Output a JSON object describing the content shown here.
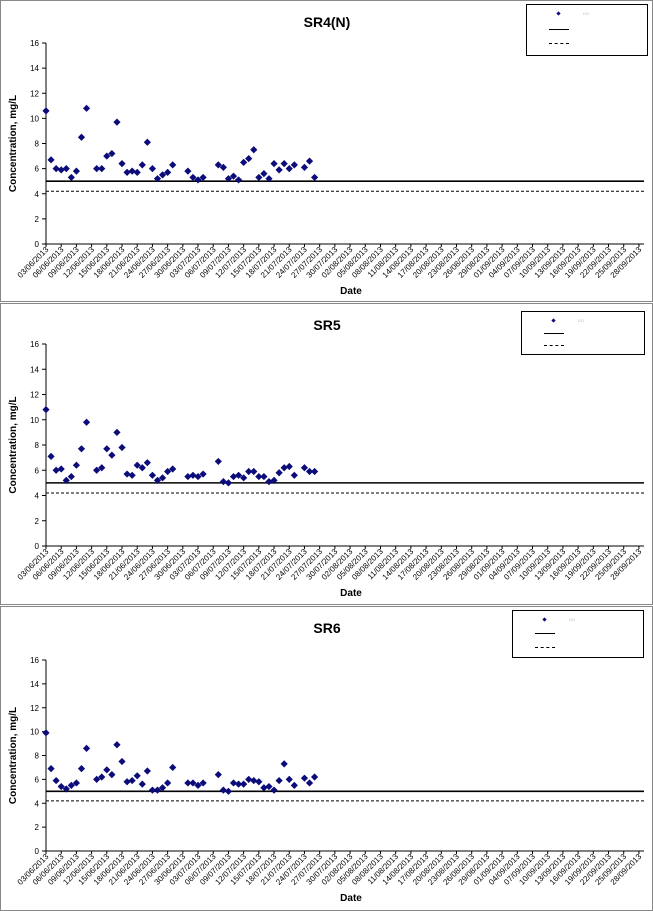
{
  "chart_data": [
    {
      "type": "scatter",
      "title": "SR4(N)",
      "xlabel": "Date",
      "ylabel": "Concentration, mg/L",
      "ylim": [
        0,
        16
      ],
      "yticks": [
        0,
        2,
        4,
        6,
        8,
        10,
        12,
        14,
        16
      ],
      "x_range": [
        "03/06/2013",
        "29/09/2013"
      ],
      "x_ticks": [
        "03/06/2013",
        "06/06/2013",
        "09/06/2013",
        "12/06/2013",
        "15/06/2013",
        "18/06/2013",
        "21/06/2013",
        "24/06/2013",
        "27/06/2013",
        "30/06/2013",
        "03/07/2013",
        "06/07/2013",
        "09/07/2013",
        "12/07/2013",
        "15/07/2013",
        "18/07/2013",
        "21/07/2013",
        "24/07/2013",
        "27/07/2013",
        "30/07/2013",
        "02/08/2013",
        "05/08/2013",
        "08/08/2013",
        "11/08/2013",
        "14/08/2013",
        "17/08/2013",
        "20/08/2013",
        "23/08/2013",
        "26/08/2013",
        "29/08/2013",
        "01/09/2013",
        "04/09/2013",
        "07/09/2013",
        "10/09/2013",
        "13/09/2013",
        "16/09/2013",
        "19/09/2013",
        "22/09/2013",
        "25/09/2013",
        "28/09/2013"
      ],
      "legend": {
        "position": "top-right",
        "entries": [
          "DO",
          "",
          ""
        ]
      },
      "lines": [
        {
          "style": "solid",
          "value": 5.0
        },
        {
          "style": "dashed",
          "value": 4.2
        }
      ],
      "grid": false,
      "series": [
        {
          "marker": "diamond",
          "color": "#0b0b7a",
          "points": [
            {
              "x": "03/06/2013",
              "y": 10.6
            },
            {
              "x": "04/06/2013",
              "y": 6.7
            },
            {
              "x": "05/06/2013",
              "y": 6.0
            },
            {
              "x": "06/06/2013",
              "y": 5.9
            },
            {
              "x": "07/06/2013",
              "y": 6.0
            },
            {
              "x": "08/06/2013",
              "y": 5.3
            },
            {
              "x": "09/06/2013",
              "y": 5.8
            },
            {
              "x": "10/06/2013",
              "y": 8.5
            },
            {
              "x": "11/06/2013",
              "y": 10.8
            },
            {
              "x": "13/06/2013",
              "y": 6.0
            },
            {
              "x": "14/06/2013",
              "y": 6.0
            },
            {
              "x": "15/06/2013",
              "y": 7.0
            },
            {
              "x": "16/06/2013",
              "y": 7.2
            },
            {
              "x": "17/06/2013",
              "y": 9.7
            },
            {
              "x": "18/06/2013",
              "y": 6.4
            },
            {
              "x": "19/06/2013",
              "y": 5.7
            },
            {
              "x": "20/06/2013",
              "y": 5.8
            },
            {
              "x": "21/06/2013",
              "y": 5.7
            },
            {
              "x": "22/06/2013",
              "y": 6.3
            },
            {
              "x": "23/06/2013",
              "y": 8.1
            },
            {
              "x": "24/06/2013",
              "y": 6.0
            },
            {
              "x": "25/06/2013",
              "y": 5.2
            },
            {
              "x": "26/06/2013",
              "y": 5.5
            },
            {
              "x": "27/06/2013",
              "y": 5.7
            },
            {
              "x": "28/06/2013",
              "y": 6.3
            },
            {
              "x": "01/07/2013",
              "y": 5.8
            },
            {
              "x": "02/07/2013",
              "y": 5.3
            },
            {
              "x": "03/07/2013",
              "y": 5.1
            },
            {
              "x": "04/07/2013",
              "y": 5.3
            },
            {
              "x": "07/07/2013",
              "y": 6.3
            },
            {
              "x": "08/07/2013",
              "y": 6.1
            },
            {
              "x": "09/07/2013",
              "y": 5.2
            },
            {
              "x": "10/07/2013",
              "y": 5.4
            },
            {
              "x": "11/07/2013",
              "y": 5.1
            },
            {
              "x": "12/07/2013",
              "y": 6.5
            },
            {
              "x": "13/07/2013",
              "y": 6.8
            },
            {
              "x": "14/07/2013",
              "y": 7.5
            },
            {
              "x": "15/07/2013",
              "y": 5.3
            },
            {
              "x": "16/07/2013",
              "y": 5.6
            },
            {
              "x": "17/07/2013",
              "y": 5.2
            },
            {
              "x": "18/07/2013",
              "y": 6.4
            },
            {
              "x": "19/07/2013",
              "y": 5.9
            },
            {
              "x": "20/07/2013",
              "y": 6.4
            },
            {
              "x": "21/07/2013",
              "y": 6.0
            },
            {
              "x": "22/07/2013",
              "y": 6.3
            },
            {
              "x": "24/07/2013",
              "y": 6.1
            },
            {
              "x": "25/07/2013",
              "y": 6.6
            },
            {
              "x": "26/07/2013",
              "y": 5.3
            }
          ]
        }
      ]
    },
    {
      "type": "scatter",
      "title": "SR5",
      "xlabel": "Date",
      "ylabel": "Concentration, mg/L",
      "ylim": [
        0,
        16
      ],
      "yticks": [
        0,
        2,
        4,
        6,
        8,
        10,
        12,
        14,
        16
      ],
      "x_range": [
        "03/06/2013",
        "29/09/2013"
      ],
      "x_ticks": [
        "03/06/2013",
        "06/06/2013",
        "09/06/2013",
        "12/06/2013",
        "15/06/2013",
        "18/06/2013",
        "21/06/2013",
        "24/06/2013",
        "27/06/2013",
        "30/06/2013",
        "03/07/2013",
        "06/07/2013",
        "09/07/2013",
        "12/07/2013",
        "15/07/2013",
        "18/07/2013",
        "21/07/2013",
        "24/07/2013",
        "27/07/2013",
        "30/07/2013",
        "02/08/2013",
        "05/08/2013",
        "08/08/2013",
        "11/08/2013",
        "14/08/2013",
        "17/08/2013",
        "20/08/2013",
        "23/08/2013",
        "26/08/2013",
        "29/08/2013",
        "01/09/2013",
        "04/09/2013",
        "07/09/2013",
        "10/09/2013",
        "13/09/2013",
        "16/09/2013",
        "19/09/2013",
        "22/09/2013",
        "25/09/2013",
        "28/09/2013"
      ],
      "legend": {
        "position": "top-right",
        "entries": [
          "DO",
          "",
          ""
        ]
      },
      "lines": [
        {
          "style": "solid",
          "value": 5.0
        },
        {
          "style": "dashed",
          "value": 4.2
        }
      ],
      "grid": false,
      "series": [
        {
          "marker": "diamond",
          "color": "#0b0b7a",
          "points": [
            {
              "x": "03/06/2013",
              "y": 10.8
            },
            {
              "x": "04/06/2013",
              "y": 7.1
            },
            {
              "x": "05/06/2013",
              "y": 6.0
            },
            {
              "x": "06/06/2013",
              "y": 6.1
            },
            {
              "x": "07/06/2013",
              "y": 5.2
            },
            {
              "x": "08/06/2013",
              "y": 5.5
            },
            {
              "x": "09/06/2013",
              "y": 6.4
            },
            {
              "x": "10/06/2013",
              "y": 7.7
            },
            {
              "x": "11/06/2013",
              "y": 9.8
            },
            {
              "x": "13/06/2013",
              "y": 6.0
            },
            {
              "x": "14/06/2013",
              "y": 6.2
            },
            {
              "x": "15/06/2013",
              "y": 7.7
            },
            {
              "x": "16/06/2013",
              "y": 7.2
            },
            {
              "x": "17/06/2013",
              "y": 9.0
            },
            {
              "x": "18/06/2013",
              "y": 7.8
            },
            {
              "x": "19/06/2013",
              "y": 5.7
            },
            {
              "x": "20/06/2013",
              "y": 5.6
            },
            {
              "x": "21/06/2013",
              "y": 6.4
            },
            {
              "x": "22/06/2013",
              "y": 6.2
            },
            {
              "x": "23/06/2013",
              "y": 6.6
            },
            {
              "x": "24/06/2013",
              "y": 5.6
            },
            {
              "x": "25/06/2013",
              "y": 5.2
            },
            {
              "x": "26/06/2013",
              "y": 5.4
            },
            {
              "x": "27/06/2013",
              "y": 5.9
            },
            {
              "x": "28/06/2013",
              "y": 6.1
            },
            {
              "x": "01/07/2013",
              "y": 5.5
            },
            {
              "x": "02/07/2013",
              "y": 5.6
            },
            {
              "x": "03/07/2013",
              "y": 5.5
            },
            {
              "x": "04/07/2013",
              "y": 5.7
            },
            {
              "x": "07/07/2013",
              "y": 6.7
            },
            {
              "x": "08/07/2013",
              "y": 5.1
            },
            {
              "x": "09/07/2013",
              "y": 5.0
            },
            {
              "x": "10/07/2013",
              "y": 5.5
            },
            {
              "x": "11/07/2013",
              "y": 5.6
            },
            {
              "x": "12/07/2013",
              "y": 5.4
            },
            {
              "x": "13/07/2013",
              "y": 5.9
            },
            {
              "x": "14/07/2013",
              "y": 5.9
            },
            {
              "x": "15/07/2013",
              "y": 5.5
            },
            {
              "x": "16/07/2013",
              "y": 5.5
            },
            {
              "x": "17/07/2013",
              "y": 5.1
            },
            {
              "x": "18/07/2013",
              "y": 5.2
            },
            {
              "x": "19/07/2013",
              "y": 5.8
            },
            {
              "x": "20/07/2013",
              "y": 6.2
            },
            {
              "x": "21/07/2013",
              "y": 6.3
            },
            {
              "x": "22/07/2013",
              "y": 5.6
            },
            {
              "x": "24/07/2013",
              "y": 6.2
            },
            {
              "x": "25/07/2013",
              "y": 5.9
            },
            {
              "x": "26/07/2013",
              "y": 5.9
            }
          ]
        }
      ]
    },
    {
      "type": "scatter",
      "title": "SR6",
      "xlabel": "Date",
      "ylabel": "Concentration, mg/L",
      "ylim": [
        0,
        16
      ],
      "yticks": [
        0,
        2,
        4,
        6,
        8,
        10,
        12,
        14,
        16
      ],
      "x_range": [
        "03/06/2013",
        "29/09/2013"
      ],
      "x_ticks": [
        "03/06/2013",
        "06/06/2013",
        "09/06/2013",
        "12/06/2013",
        "15/06/2013",
        "18/06/2013",
        "21/06/2013",
        "24/06/2013",
        "27/06/2013",
        "30/06/2013",
        "03/07/2013",
        "06/07/2013",
        "09/07/2013",
        "12/07/2013",
        "15/07/2013",
        "18/07/2013",
        "21/07/2013",
        "24/07/2013",
        "27/07/2013",
        "30/07/2013",
        "02/08/2013",
        "05/08/2013",
        "08/08/2013",
        "11/08/2013",
        "14/08/2013",
        "17/08/2013",
        "20/08/2013",
        "23/08/2013",
        "26/08/2013",
        "29/08/2013",
        "01/09/2013",
        "04/09/2013",
        "07/09/2013",
        "10/09/2013",
        "13/09/2013",
        "16/09/2013",
        "19/09/2013",
        "22/09/2013",
        "25/09/2013",
        "28/09/2013"
      ],
      "legend": {
        "position": "top-right",
        "entries": [
          "DO",
          "",
          ""
        ]
      },
      "lines": [
        {
          "style": "solid",
          "value": 5.0
        },
        {
          "style": "dashed",
          "value": 4.2
        }
      ],
      "grid": false,
      "series": [
        {
          "marker": "diamond",
          "color": "#0b0b7a",
          "points": [
            {
              "x": "03/06/2013",
              "y": 9.9
            },
            {
              "x": "04/06/2013",
              "y": 6.9
            },
            {
              "x": "05/06/2013",
              "y": 5.9
            },
            {
              "x": "06/06/2013",
              "y": 5.4
            },
            {
              "x": "07/06/2013",
              "y": 5.2
            },
            {
              "x": "08/06/2013",
              "y": 5.5
            },
            {
              "x": "09/06/2013",
              "y": 5.7
            },
            {
              "x": "10/06/2013",
              "y": 6.9
            },
            {
              "x": "11/06/2013",
              "y": 8.6
            },
            {
              "x": "13/06/2013",
              "y": 6.0
            },
            {
              "x": "14/06/2013",
              "y": 6.2
            },
            {
              "x": "15/06/2013",
              "y": 6.8
            },
            {
              "x": "16/06/2013",
              "y": 6.4
            },
            {
              "x": "17/06/2013",
              "y": 8.9
            },
            {
              "x": "18/06/2013",
              "y": 7.5
            },
            {
              "x": "19/06/2013",
              "y": 5.8
            },
            {
              "x": "20/06/2013",
              "y": 5.9
            },
            {
              "x": "21/06/2013",
              "y": 6.3
            },
            {
              "x": "22/06/2013",
              "y": 5.6
            },
            {
              "x": "23/06/2013",
              "y": 6.7
            },
            {
              "x": "24/06/2013",
              "y": 5.1
            },
            {
              "x": "25/06/2013",
              "y": 5.1
            },
            {
              "x": "26/06/2013",
              "y": 5.3
            },
            {
              "x": "27/06/2013",
              "y": 5.7
            },
            {
              "x": "28/06/2013",
              "y": 7.0
            },
            {
              "x": "01/07/2013",
              "y": 5.7
            },
            {
              "x": "02/07/2013",
              "y": 5.7
            },
            {
              "x": "03/07/2013",
              "y": 5.5
            },
            {
              "x": "04/07/2013",
              "y": 5.7
            },
            {
              "x": "07/07/2013",
              "y": 6.4
            },
            {
              "x": "08/07/2013",
              "y": 5.1
            },
            {
              "x": "09/07/2013",
              "y": 5.0
            },
            {
              "x": "10/07/2013",
              "y": 5.7
            },
            {
              "x": "11/07/2013",
              "y": 5.6
            },
            {
              "x": "12/07/2013",
              "y": 5.6
            },
            {
              "x": "13/07/2013",
              "y": 6.0
            },
            {
              "x": "14/07/2013",
              "y": 5.9
            },
            {
              "x": "15/07/2013",
              "y": 5.8
            },
            {
              "x": "16/07/2013",
              "y": 5.3
            },
            {
              "x": "17/07/2013",
              "y": 5.4
            },
            {
              "x": "18/07/2013",
              "y": 5.1
            },
            {
              "x": "19/07/2013",
              "y": 5.9
            },
            {
              "x": "20/07/2013",
              "y": 7.3
            },
            {
              "x": "21/07/2013",
              "y": 6.0
            },
            {
              "x": "22/07/2013",
              "y": 5.5
            },
            {
              "x": "24/07/2013",
              "y": 6.1
            },
            {
              "x": "25/07/2013",
              "y": 5.7
            },
            {
              "x": "26/07/2013",
              "y": 6.2
            }
          ]
        }
      ]
    }
  ]
}
